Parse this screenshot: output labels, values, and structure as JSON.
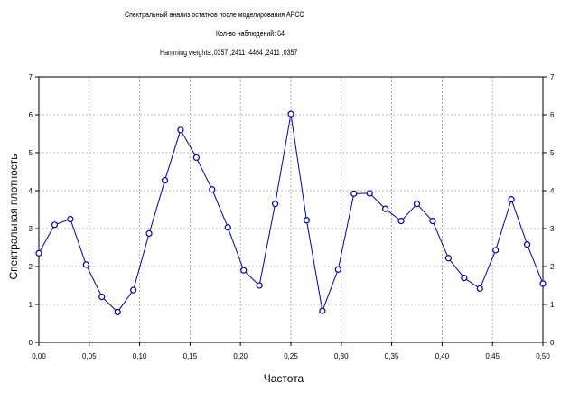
{
  "header": {
    "line1": "Спектральный анализ остатков после моделирования АРСС",
    "line2": "Кол-во наблюдений: 64",
    "line3": "Hamming weights:,0357 ,2411 ,4464 ,2411 ,0357"
  },
  "chart_data": {
    "type": "line",
    "title": "",
    "xlabel": "Частота",
    "ylabel": "Спектральная плотность",
    "xlim": [
      0,
      0.5
    ],
    "ylim": [
      0,
      7
    ],
    "xticks": [
      "0,00",
      "0,05",
      "0,10",
      "0,15",
      "0,20",
      "0,25",
      "0,30",
      "0,35",
      "0,40",
      "0,45",
      "0,50"
    ],
    "yticks": [
      "0",
      "1",
      "2",
      "3",
      "4",
      "5",
      "6",
      "7"
    ],
    "grid": true,
    "marker": "circle",
    "color": "#0000aa",
    "series": [
      {
        "x": [
          0.0,
          0.015625,
          0.03125,
          0.046875,
          0.0625,
          0.078125,
          0.09375,
          0.109375,
          0.125,
          0.140625,
          0.15625,
          0.171875,
          0.1875,
          0.203125,
          0.21875,
          0.234375,
          0.25,
          0.265625,
          0.28125,
          0.296875,
          0.3125,
          0.328125,
          0.34375,
          0.359375,
          0.375,
          0.390625,
          0.40625,
          0.421875,
          0.4375,
          0.453125,
          0.46875,
          0.484375,
          0.5
        ],
        "values": [
          2.35,
          3.1,
          3.25,
          2.05,
          1.2,
          0.8,
          1.38,
          2.87,
          4.27,
          5.6,
          4.87,
          4.03,
          3.03,
          1.9,
          1.5,
          3.65,
          6.02,
          3.22,
          0.83,
          1.92,
          3.92,
          3.93,
          3.52,
          3.2,
          3.65,
          3.2,
          2.22,
          1.7,
          1.42,
          2.43,
          3.77,
          2.58,
          1.55
        ]
      }
    ]
  }
}
